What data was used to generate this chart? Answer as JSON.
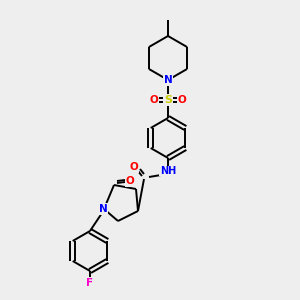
{
  "bg_color": "#eeeeee",
  "bond_color": "#000000",
  "atom_colors": {
    "N": "#0000ff",
    "O": "#ff0000",
    "F": "#ff00cc",
    "S": "#cccc00",
    "C": "#000000",
    "H": "#555555"
  },
  "lw": 1.4,
  "fs": 7.5
}
